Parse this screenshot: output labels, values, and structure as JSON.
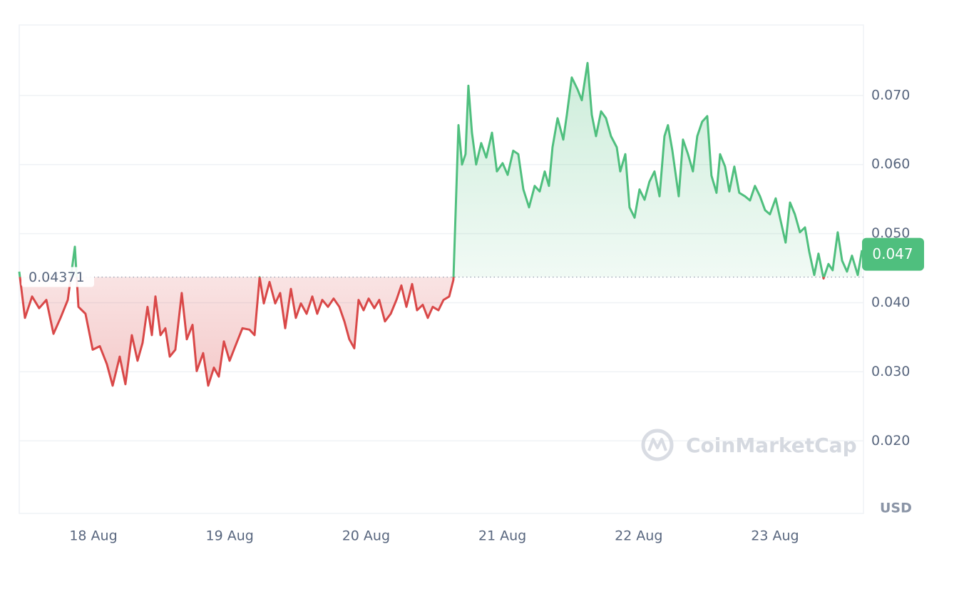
{
  "chart_data": {
    "type": "line",
    "x": [
      17.456,
      17.498,
      17.55,
      17.602,
      17.655,
      17.707,
      17.759,
      17.812,
      17.864,
      17.89,
      17.942,
      17.995,
      18.047,
      18.099,
      18.141,
      18.193,
      18.235,
      18.282,
      18.324,
      18.361,
      18.397,
      18.429,
      18.455,
      18.492,
      18.528,
      18.56,
      18.601,
      18.648,
      18.685,
      18.727,
      18.758,
      18.805,
      18.842,
      18.884,
      18.92,
      18.957,
      18.999,
      19.041,
      19.093,
      19.145,
      19.182,
      19.219,
      19.25,
      19.292,
      19.334,
      19.37,
      19.407,
      19.449,
      19.485,
      19.522,
      19.564,
      19.606,
      19.642,
      19.679,
      19.721,
      19.762,
      19.804,
      19.841,
      19.877,
      19.914,
      19.945,
      19.982,
      20.019,
      20.061,
      20.097,
      20.139,
      20.181,
      20.223,
      20.259,
      20.296,
      20.338,
      20.374,
      20.416,
      20.453,
      20.489,
      20.531,
      20.568,
      20.61,
      20.641,
      20.662,
      20.678,
      20.704,
      20.73,
      20.751,
      20.777,
      20.808,
      20.845,
      20.882,
      20.924,
      20.96,
      21.002,
      21.039,
      21.08,
      21.117,
      21.154,
      21.196,
      21.237,
      21.274,
      21.311,
      21.342,
      21.368,
      21.405,
      21.447,
      21.473,
      21.509,
      21.551,
      21.583,
      21.625,
      21.656,
      21.687,
      21.724,
      21.76,
      21.797,
      21.839,
      21.865,
      21.902,
      21.933,
      21.97,
      22.006,
      22.043,
      22.079,
      22.116,
      22.153,
      22.189,
      22.215,
      22.247,
      22.294,
      22.325,
      22.362,
      22.398,
      22.43,
      22.466,
      22.503,
      22.534,
      22.571,
      22.597,
      22.634,
      22.665,
      22.702,
      22.738,
      22.78,
      22.817,
      22.853,
      22.89,
      22.927,
      22.963,
      23.005,
      23.042,
      23.078,
      23.11,
      23.146,
      23.183,
      23.22,
      23.251,
      23.288,
      23.319,
      23.356,
      23.392,
      23.423,
      23.46,
      23.492,
      23.528,
      23.565,
      23.607,
      23.638
    ],
    "values": [
      0.0445,
      0.0378,
      0.0409,
      0.0392,
      0.0404,
      0.0355,
      0.0378,
      0.0404,
      0.0481,
      0.0394,
      0.0384,
      0.0332,
      0.0337,
      0.0311,
      0.028,
      0.0322,
      0.0282,
      0.0353,
      0.0316,
      0.0342,
      0.0394,
      0.0353,
      0.0409,
      0.0353,
      0.0363,
      0.0322,
      0.0332,
      0.0414,
      0.0347,
      0.0368,
      0.0301,
      0.0327,
      0.028,
      0.0306,
      0.0293,
      0.0344,
      0.0316,
      0.0337,
      0.0363,
      0.0361,
      0.0353,
      0.0437,
      0.0399,
      0.043,
      0.0399,
      0.0414,
      0.0363,
      0.042,
      0.0378,
      0.0399,
      0.0384,
      0.0409,
      0.0384,
      0.0404,
      0.0394,
      0.0406,
      0.0394,
      0.0373,
      0.0347,
      0.0334,
      0.0404,
      0.0389,
      0.0406,
      0.0392,
      0.0404,
      0.0373,
      0.0384,
      0.0404,
      0.0425,
      0.0394,
      0.0427,
      0.0389,
      0.0397,
      0.0378,
      0.0394,
      0.0389,
      0.0404,
      0.0409,
      0.0433,
      0.0559,
      0.0657,
      0.06,
      0.0615,
      0.0714,
      0.0646,
      0.06,
      0.0631,
      0.061,
      0.0646,
      0.059,
      0.0602,
      0.0585,
      0.062,
      0.0615,
      0.0564,
      0.0538,
      0.0569,
      0.0561,
      0.059,
      0.0569,
      0.0625,
      0.0667,
      0.0636,
      0.0672,
      0.0726,
      0.0709,
      0.0693,
      0.0747,
      0.0672,
      0.0641,
      0.0677,
      0.0667,
      0.0641,
      0.0625,
      0.059,
      0.0615,
      0.0538,
      0.0523,
      0.0564,
      0.0549,
      0.0575,
      0.059,
      0.0554,
      0.0641,
      0.0657,
      0.062,
      0.0554,
      0.0636,
      0.0615,
      0.059,
      0.0641,
      0.0662,
      0.067,
      0.0584,
      0.0559,
      0.0615,
      0.0597,
      0.0561,
      0.0597,
      0.0559,
      0.0554,
      0.0548,
      0.0569,
      0.0554,
      0.0534,
      0.0528,
      0.0551,
      0.0518,
      0.0487,
      0.0545,
      0.0528,
      0.0502,
      0.0509,
      0.0474,
      0.044,
      0.0471,
      0.0435,
      0.0456,
      0.0447,
      0.0502,
      0.0461,
      0.0445,
      0.0468,
      0.044,
      0.0476
    ],
    "up_color": "#4fbf7e",
    "down_color": "#d94848",
    "baseline": 0.04371,
    "current_price": 0.047,
    "xlim": [
      17.456,
      23.649
    ],
    "xticks": [
      {
        "value": 18,
        "label": "18 Aug"
      },
      {
        "value": 19,
        "label": "19 Aug"
      },
      {
        "value": 20,
        "label": "20 Aug"
      },
      {
        "value": 21,
        "label": "21 Aug"
      },
      {
        "value": 22,
        "label": "22 Aug"
      },
      {
        "value": 23,
        "label": "23 Aug"
      }
    ],
    "ylim": [
      0.0095,
      0.0802
    ],
    "yticks": [
      {
        "value": 0.02,
        "label": "0.020"
      },
      {
        "value": 0.03,
        "label": "0.030"
      },
      {
        "value": 0.04,
        "label": "0.040"
      },
      {
        "value": 0.05,
        "label": "0.050"
      },
      {
        "value": 0.06,
        "label": "0.060"
      },
      {
        "value": 0.07,
        "label": "0.070"
      }
    ],
    "grid": true,
    "currency": "USD",
    "watermark": "CoinMarketCap"
  }
}
